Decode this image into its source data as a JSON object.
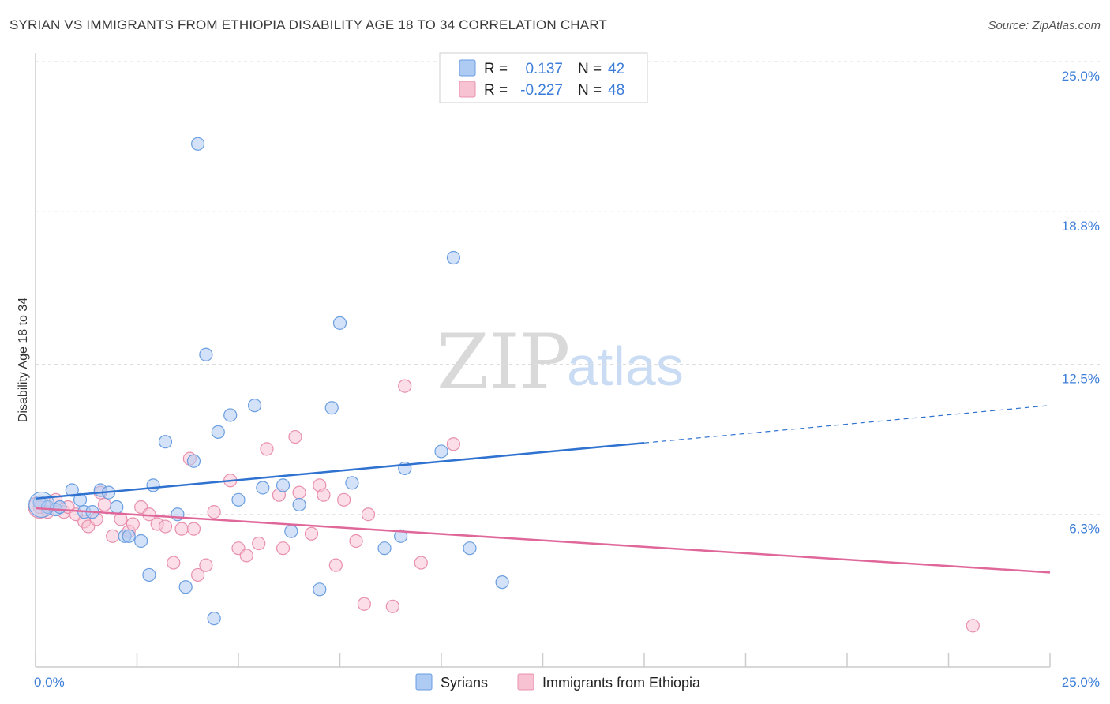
{
  "title": "SYRIAN VS IMMIGRANTS FROM ETHIOPIA DISABILITY AGE 18 TO 34 CORRELATION CHART",
  "source": "Source: ZipAtlas.com",
  "watermark": {
    "zip": "ZIP",
    "atlas": "atlas"
  },
  "legend": {
    "rows": [
      {
        "r_label": "R =",
        "r_value": "0.137",
        "n_label": "N =",
        "n_value": "42"
      },
      {
        "r_label": "R =",
        "r_value": "-0.227",
        "n_label": "N =",
        "n_value": "48"
      }
    ]
  },
  "bottom_legend": {
    "syrians": "Syrians",
    "ethiopia": "Immigrants from Ethiopia"
  },
  "colors": {
    "blue_fill": "#aecbf3",
    "blue_stroke": "#6a9ee0",
    "blue_line": "#2f72d0",
    "pink_fill": "#f7c3d3",
    "pink_stroke": "#e890ad",
    "pink_line": "#e0679a",
    "axis_text": "#3b7dd8",
    "grid": "#dddddd"
  },
  "chart_data": {
    "type": "scatter",
    "title": "SYRIAN VS IMMIGRANTS FROM ETHIOPIA DISABILITY AGE 18 TO 34 CORRELATION CHART",
    "xlabel": "",
    "ylabel": "Disability Age 18 to 34",
    "xlim": [
      0,
      25
    ],
    "ylim": [
      0,
      25
    ],
    "x_tick_labels": [
      "0.0%",
      "25.0%"
    ],
    "y_ticks": [
      6.3,
      12.5,
      18.8,
      25.0
    ],
    "y_tick_labels": [
      "6.3%",
      "12.5%",
      "18.8%",
      "25.0%"
    ],
    "grid": true,
    "legend_position": "top-center",
    "series": [
      {
        "name": "Syrians",
        "r": 0.137,
        "n": 42,
        "trend": {
          "x0": 0,
          "y0": 6.95,
          "x1": 15,
          "y1": 9.25,
          "dashed_to_x": 25,
          "dashed_to_y": 10.8
        },
        "points": [
          [
            0.1,
            6.8
          ],
          [
            0.3,
            6.6
          ],
          [
            0.5,
            6.5
          ],
          [
            0.6,
            6.6
          ],
          [
            0.9,
            7.3
          ],
          [
            1.1,
            6.9
          ],
          [
            1.2,
            6.4
          ],
          [
            1.4,
            6.4
          ],
          [
            1.6,
            7.3
          ],
          [
            1.8,
            7.2
          ],
          [
            2.0,
            6.6
          ],
          [
            2.2,
            5.4
          ],
          [
            2.3,
            5.4
          ],
          [
            2.6,
            5.2
          ],
          [
            2.8,
            3.8
          ],
          [
            2.9,
            7.5
          ],
          [
            3.2,
            9.3
          ],
          [
            3.5,
            6.3
          ],
          [
            3.7,
            3.3
          ],
          [
            3.9,
            8.5
          ],
          [
            4.0,
            21.6
          ],
          [
            4.2,
            12.9
          ],
          [
            4.5,
            9.7
          ],
          [
            4.4,
            2.0
          ],
          [
            4.8,
            10.4
          ],
          [
            5.0,
            6.9
          ],
          [
            5.4,
            10.8
          ],
          [
            5.6,
            7.4
          ],
          [
            6.1,
            7.5
          ],
          [
            6.3,
            5.6
          ],
          [
            6.5,
            6.7
          ],
          [
            7.0,
            3.2
          ],
          [
            7.3,
            10.7
          ],
          [
            7.5,
            14.2
          ],
          [
            7.8,
            7.6
          ],
          [
            8.6,
            4.9
          ],
          [
            9.0,
            5.4
          ],
          [
            9.1,
            8.2
          ],
          [
            10.0,
            8.9
          ],
          [
            10.3,
            16.9
          ],
          [
            10.7,
            4.9
          ],
          [
            11.5,
            3.5
          ]
        ]
      },
      {
        "name": "Immigrants from Ethiopia",
        "r": -0.227,
        "n": 48,
        "trend": {
          "x0": 0,
          "y0": 6.55,
          "x1": 25,
          "y1": 3.9
        },
        "points": [
          [
            0.1,
            6.6
          ],
          [
            0.3,
            6.4
          ],
          [
            0.5,
            6.9
          ],
          [
            0.7,
            6.4
          ],
          [
            0.8,
            6.6
          ],
          [
            1.0,
            6.3
          ],
          [
            1.2,
            6.0
          ],
          [
            1.3,
            5.8
          ],
          [
            1.5,
            6.1
          ],
          [
            1.6,
            7.2
          ],
          [
            1.7,
            6.7
          ],
          [
            1.9,
            5.4
          ],
          [
            2.1,
            6.1
          ],
          [
            2.3,
            5.6
          ],
          [
            2.4,
            5.9
          ],
          [
            2.6,
            6.6
          ],
          [
            2.8,
            6.3
          ],
          [
            3.0,
            5.9
          ],
          [
            3.2,
            5.8
          ],
          [
            3.4,
            4.3
          ],
          [
            3.6,
            5.7
          ],
          [
            3.8,
            8.6
          ],
          [
            3.9,
            5.7
          ],
          [
            4.0,
            3.8
          ],
          [
            4.2,
            4.2
          ],
          [
            4.4,
            6.4
          ],
          [
            4.8,
            7.7
          ],
          [
            5.0,
            4.9
          ],
          [
            5.2,
            4.6
          ],
          [
            5.5,
            5.1
          ],
          [
            5.7,
            9.0
          ],
          [
            6.0,
            7.1
          ],
          [
            6.1,
            4.9
          ],
          [
            6.4,
            9.5
          ],
          [
            6.5,
            7.2
          ],
          [
            6.8,
            5.5
          ],
          [
            7.0,
            7.5
          ],
          [
            7.1,
            7.1
          ],
          [
            7.4,
            4.2
          ],
          [
            7.6,
            6.9
          ],
          [
            7.9,
            5.2
          ],
          [
            8.1,
            2.6
          ],
          [
            8.2,
            6.3
          ],
          [
            8.8,
            2.5
          ],
          [
            9.1,
            11.6
          ],
          [
            9.5,
            4.3
          ],
          [
            10.3,
            9.2
          ],
          [
            23.1,
            1.7
          ]
        ]
      }
    ]
  }
}
